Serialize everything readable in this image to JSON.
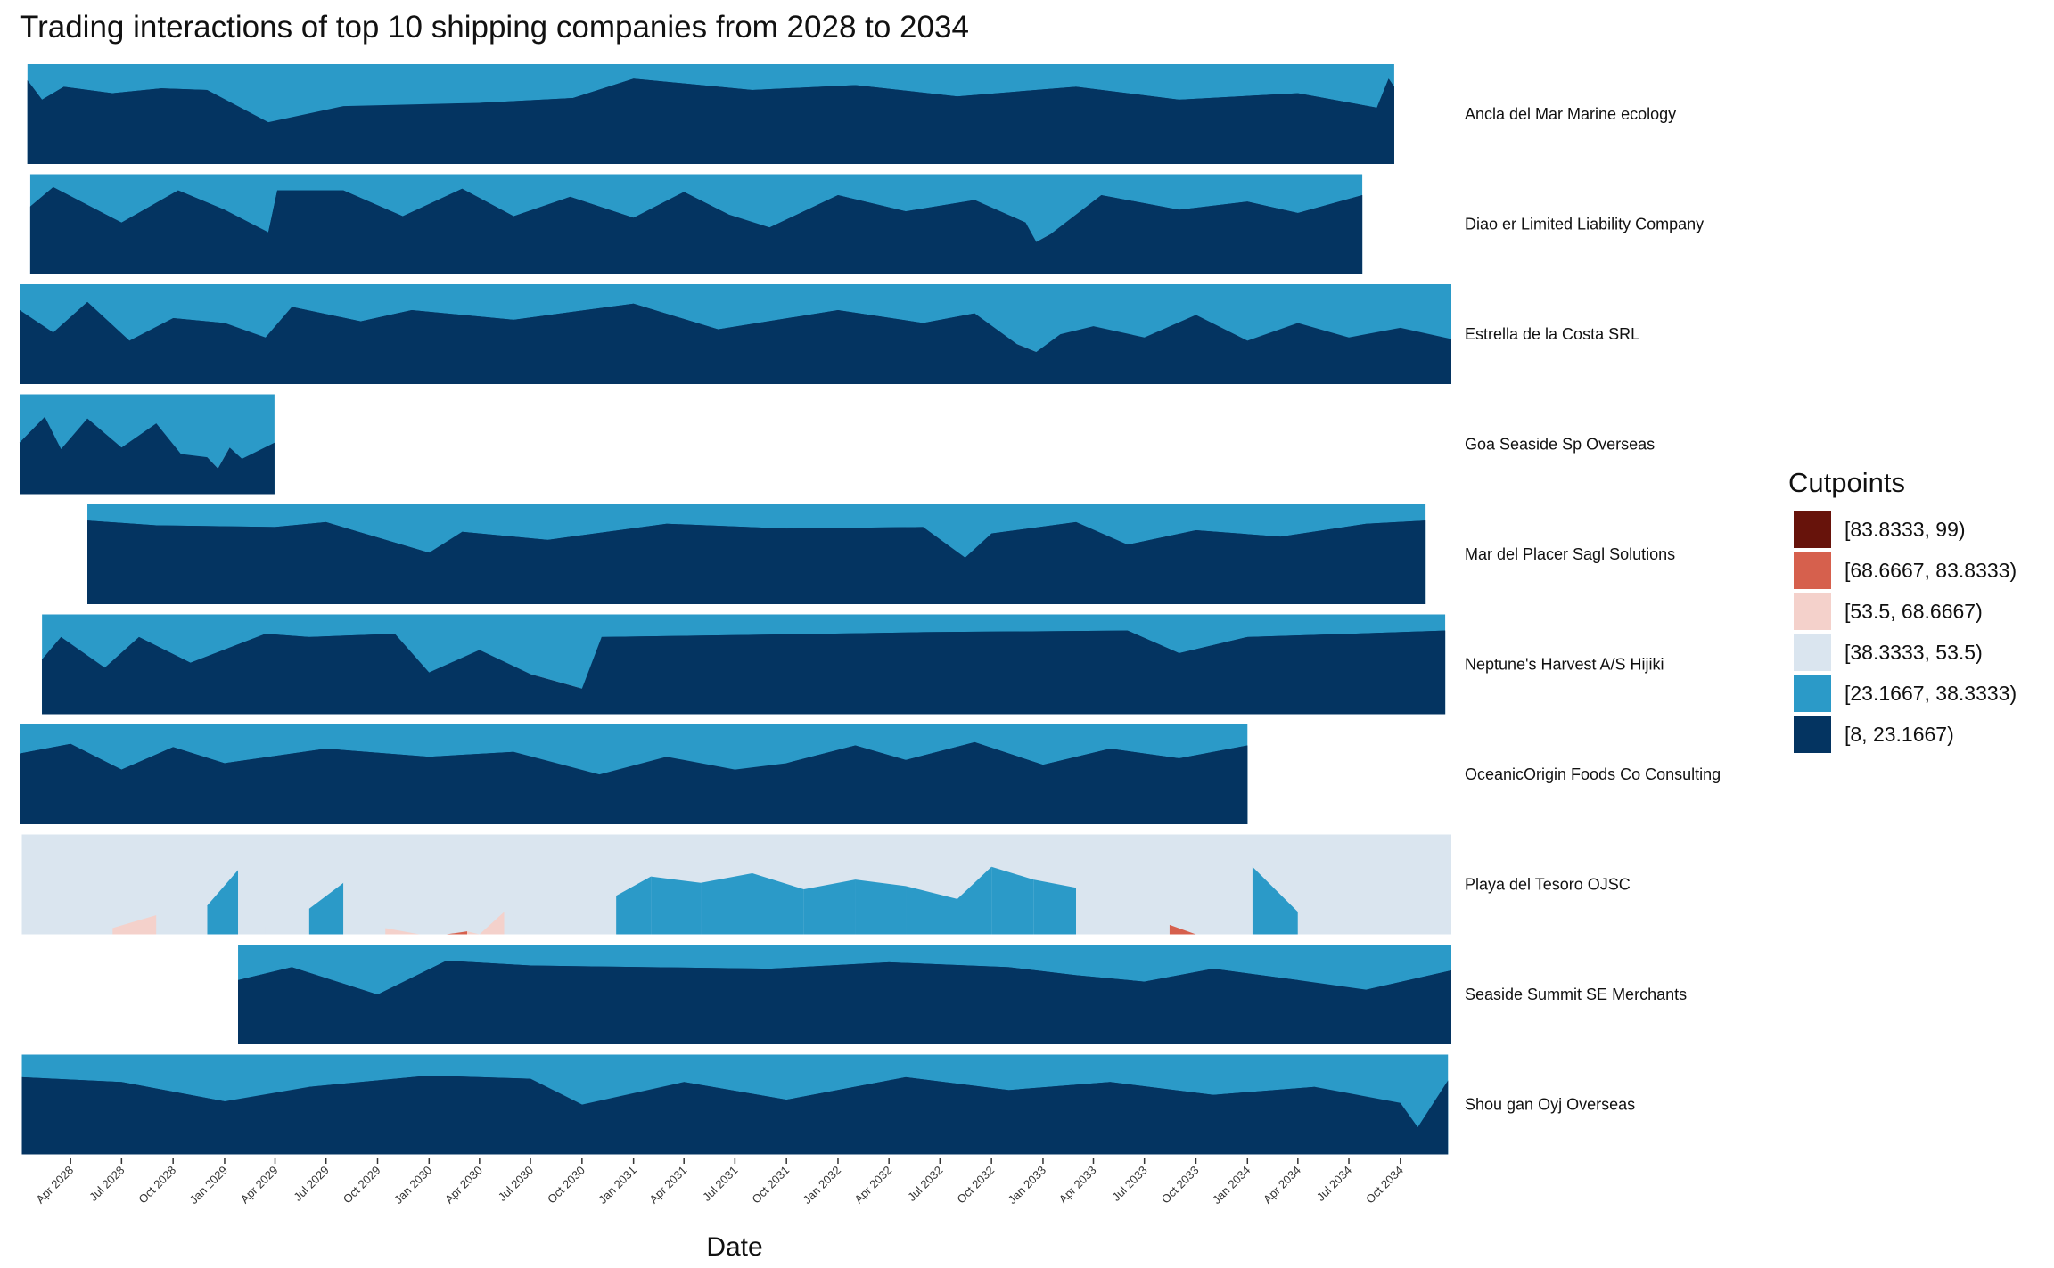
{
  "chart_data": {
    "type": "area",
    "title": "Trading interactions of top 10 shipping companies from 2028 to 2034",
    "xlabel": "Date",
    "ylabel": "",
    "x_range": [
      "2028-01-01",
      "2034-12-31"
    ],
    "x_ticks": [
      "Apr 2028",
      "Jul 2028",
      "Oct 2028",
      "Jan 2029",
      "Apr 2029",
      "Jul 2029",
      "Oct 2029",
      "Jan 2030",
      "Apr 2030",
      "Jul 2030",
      "Oct 2030",
      "Jan 2031",
      "Apr 2031",
      "Jul 2031",
      "Oct 2031",
      "Jan 2032",
      "Apr 2032",
      "Jul 2032",
      "Oct 2032",
      "Jan 2033",
      "Apr 2033",
      "Jul 2033",
      "Oct 2033",
      "Jan 2034",
      "Apr 2034",
      "Jul 2034",
      "Oct 2034"
    ],
    "grid": false,
    "legend": {
      "title": "Cutpoints",
      "position": "right",
      "entries": [
        {
          "label": "[83.8333, 99)",
          "color": "#67130b"
        },
        {
          "label": "[68.6667, 83.8333)",
          "color": "#d6604d"
        },
        {
          "label": "[53.5, 68.6667)",
          "color": "#f4d1cb"
        },
        {
          "label": "[38.3333, 53.5)",
          "color": "#dae5ef"
        },
        {
          "label": "[23.1667, 38.3333)",
          "color": "#2b9ac8"
        },
        {
          "label": "[8, 23.1667)",
          "color": "#043461"
        }
      ]
    },
    "series": [
      {
        "name": "Ancla del Mar Marine ecology",
        "start": "2028-01-15",
        "end": "2034-09-20",
        "points": [
          [
            "2028-01-15",
            10
          ],
          [
            "2028-02-10",
            22
          ],
          [
            "2028-03-20",
            14
          ],
          [
            "2028-06-15",
            18
          ],
          [
            "2028-09-10",
            15
          ],
          [
            "2028-12-01",
            16
          ],
          [
            "2029-03-20",
            36
          ],
          [
            "2029-08-01",
            26
          ],
          [
            "2030-04-01",
            24
          ],
          [
            "2030-09-15",
            21
          ],
          [
            "2031-01-01",
            9
          ],
          [
            "2031-08-01",
            16
          ],
          [
            "2032-02-01",
            13
          ],
          [
            "2032-08-01",
            20
          ],
          [
            "2033-03-01",
            14
          ],
          [
            "2033-09-01",
            22
          ],
          [
            "2034-04-01",
            18
          ],
          [
            "2034-08-20",
            27
          ],
          [
            "2034-09-10",
            9
          ],
          [
            "2034-09-20",
            14
          ]
        ]
      },
      {
        "name": "Diao er  Limited Liability Company",
        "start": "2028-01-20",
        "end": "2034-07-25",
        "points": [
          [
            "2028-01-20",
            20
          ],
          [
            "2028-03-01",
            8
          ],
          [
            "2028-07-01",
            30
          ],
          [
            "2028-10-10",
            10
          ],
          [
            "2029-01-01",
            22
          ],
          [
            "2029-03-20",
            36
          ],
          [
            "2029-04-05",
            10
          ],
          [
            "2029-08-01",
            10
          ],
          [
            "2029-11-15",
            26
          ],
          [
            "2030-03-01",
            9
          ],
          [
            "2030-06-01",
            26
          ],
          [
            "2030-09-10",
            14
          ],
          [
            "2031-01-01",
            27
          ],
          [
            "2031-04-01",
            11
          ],
          [
            "2031-06-20",
            25
          ],
          [
            "2031-09-01",
            33
          ],
          [
            "2032-01-01",
            13
          ],
          [
            "2032-05-01",
            23
          ],
          [
            "2032-09-01",
            16
          ],
          [
            "2032-12-01",
            30
          ],
          [
            "2032-12-20",
            42
          ],
          [
            "2033-01-15",
            37
          ],
          [
            "2033-04-15",
            13
          ],
          [
            "2033-09-01",
            22
          ],
          [
            "2034-01-01",
            17
          ],
          [
            "2034-04-01",
            24
          ],
          [
            "2034-07-25",
            13
          ]
        ]
      },
      {
        "name": "Estrella de la Costa SRL",
        "start": "2028-01-01",
        "end": "2034-12-31",
        "points": [
          [
            "2028-01-01",
            16
          ],
          [
            "2028-03-01",
            30
          ],
          [
            "2028-05-01",
            11
          ],
          [
            "2028-07-15",
            35
          ],
          [
            "2028-10-01",
            21
          ],
          [
            "2029-01-01",
            24
          ],
          [
            "2029-03-15",
            33
          ],
          [
            "2029-05-01",
            14
          ],
          [
            "2029-09-01",
            23
          ],
          [
            "2029-12-01",
            16
          ],
          [
            "2030-06-01",
            22
          ],
          [
            "2031-01-01",
            12
          ],
          [
            "2031-06-01",
            28
          ],
          [
            "2032-01-01",
            16
          ],
          [
            "2032-06-01",
            24
          ],
          [
            "2032-09-01",
            18
          ],
          [
            "2032-11-15",
            37
          ],
          [
            "2032-12-20",
            42
          ],
          [
            "2033-02-01",
            31
          ],
          [
            "2033-04-01",
            26
          ],
          [
            "2033-07-01",
            33
          ],
          [
            "2033-10-01",
            19
          ],
          [
            "2034-01-01",
            35
          ],
          [
            "2034-04-01",
            24
          ],
          [
            "2034-07-01",
            33
          ],
          [
            "2034-10-01",
            27
          ],
          [
            "2034-12-31",
            34
          ]
        ]
      },
      {
        "name": "Goa   Seaside Sp Overseas",
        "start": "2028-01-01",
        "end": "2029-03-31",
        "points": [
          [
            "2028-01-01",
            30
          ],
          [
            "2028-02-15",
            14
          ],
          [
            "2028-03-15",
            34
          ],
          [
            "2028-05-01",
            15
          ],
          [
            "2028-07-01",
            33
          ],
          [
            "2028-09-01",
            18
          ],
          [
            "2028-10-15",
            37
          ],
          [
            "2028-12-01",
            39
          ],
          [
            "2028-12-20",
            46
          ],
          [
            "2029-01-10",
            33
          ],
          [
            "2029-02-01",
            40
          ],
          [
            "2029-03-31",
            30
          ]
        ]
      },
      {
        "name": "Mar del Placer Sagl Solutions",
        "start": "2028-05-01",
        "end": "2034-11-15",
        "points": [
          [
            "2028-05-01",
            10
          ],
          [
            "2028-09-01",
            13
          ],
          [
            "2029-04-01",
            14
          ],
          [
            "2029-07-01",
            11
          ],
          [
            "2030-01-01",
            30
          ],
          [
            "2030-03-01",
            17
          ],
          [
            "2030-08-01",
            22
          ],
          [
            "2031-03-01",
            12
          ],
          [
            "2031-10-01",
            15
          ],
          [
            "2032-06-01",
            14
          ],
          [
            "2032-08-15",
            33
          ],
          [
            "2032-10-01",
            18
          ],
          [
            "2033-03-01",
            11
          ],
          [
            "2033-06-01",
            25
          ],
          [
            "2033-10-01",
            16
          ],
          [
            "2034-03-01",
            20
          ],
          [
            "2034-08-01",
            12
          ],
          [
            "2034-11-15",
            10
          ]
        ]
      },
      {
        "name": "Neptune's Harvest A/S Hijiki",
        "start": "2028-02-10",
        "end": "2034-12-20",
        "points": [
          [
            "2028-02-10",
            28
          ],
          [
            "2028-03-15",
            14
          ],
          [
            "2028-06-01",
            33
          ],
          [
            "2028-08-01",
            14
          ],
          [
            "2028-11-01",
            30
          ],
          [
            "2029-03-15",
            12
          ],
          [
            "2029-06-01",
            14
          ],
          [
            "2029-11-01",
            12
          ],
          [
            "2030-01-01",
            36
          ],
          [
            "2030-04-01",
            22
          ],
          [
            "2030-07-01",
            37
          ],
          [
            "2030-10-01",
            46
          ],
          [
            "2030-11-05",
            14
          ],
          [
            "2031-06-01",
            13
          ],
          [
            "2032-06-01",
            11
          ],
          [
            "2033-06-01",
            10
          ],
          [
            "2033-09-01",
            24
          ],
          [
            "2034-01-01",
            14
          ],
          [
            "2034-07-01",
            12
          ],
          [
            "2034-12-20",
            10
          ]
        ]
      },
      {
        "name": "OceanicOrigin Foods Co Consulting",
        "start": "2028-01-01",
        "end": "2034-01-01",
        "points": [
          [
            "2028-01-01",
            18
          ],
          [
            "2028-04-01",
            12
          ],
          [
            "2028-07-01",
            28
          ],
          [
            "2028-10-01",
            14
          ],
          [
            "2029-01-01",
            24
          ],
          [
            "2029-07-01",
            15
          ],
          [
            "2030-01-01",
            20
          ],
          [
            "2030-06-01",
            17
          ],
          [
            "2030-11-01",
            31
          ],
          [
            "2031-03-01",
            20
          ],
          [
            "2031-07-01",
            28
          ],
          [
            "2031-10-01",
            24
          ],
          [
            "2032-02-01",
            13
          ],
          [
            "2032-05-01",
            22
          ],
          [
            "2032-09-01",
            11
          ],
          [
            "2033-01-01",
            25
          ],
          [
            "2033-05-01",
            15
          ],
          [
            "2033-09-01",
            21
          ],
          [
            "2034-01-01",
            13
          ]
        ]
      },
      {
        "name": "Playa del Tesoro OJSC",
        "start": "2028-01-05",
        "end": "2034-12-31",
        "points": [
          [
            "2028-01-05",
            44
          ],
          [
            "2028-02-20",
            60
          ],
          [
            "2028-04-01",
            46
          ],
          [
            "2028-06-15",
            58
          ],
          [
            "2028-09-01",
            50
          ],
          [
            "2028-12-01",
            44
          ],
          [
            "2029-01-25",
            22
          ],
          [
            "2029-03-15",
            57
          ],
          [
            "2029-06-01",
            46
          ],
          [
            "2029-08-01",
            30
          ],
          [
            "2029-10-15",
            58
          ],
          [
            "2029-12-15",
            62
          ],
          [
            "2030-02-01",
            95
          ],
          [
            "2030-03-10",
            60
          ],
          [
            "2030-04-01",
            73
          ],
          [
            "2030-05-15",
            48
          ],
          [
            "2030-08-01",
            56
          ],
          [
            "2030-10-01",
            44
          ],
          [
            "2030-12-01",
            38
          ],
          [
            "2031-02-01",
            26
          ],
          [
            "2031-05-01",
            30
          ],
          [
            "2031-08-01",
            24
          ],
          [
            "2031-11-01",
            34
          ],
          [
            "2032-02-01",
            28
          ],
          [
            "2032-05-01",
            32
          ],
          [
            "2032-08-01",
            40
          ],
          [
            "2032-10-01",
            20
          ],
          [
            "2032-12-15",
            28
          ],
          [
            "2033-03-01",
            33
          ],
          [
            "2033-06-01",
            44
          ],
          [
            "2033-08-15",
            56
          ],
          [
            "2033-10-01",
            90
          ],
          [
            "2033-11-01",
            78
          ],
          [
            "2033-12-01",
            73
          ],
          [
            "2034-01-10",
            20
          ],
          [
            "2034-04-01",
            48
          ],
          [
            "2034-07-01",
            54
          ],
          [
            "2034-10-01",
            40
          ],
          [
            "2034-12-31",
            58
          ]
        ]
      },
      {
        "name": "Seaside Summit SE Merchants",
        "start": "2029-01-25",
        "end": "2034-12-31",
        "points": [
          [
            "2029-01-25",
            22
          ],
          [
            "2029-05-01",
            14
          ],
          [
            "2029-10-01",
            31
          ],
          [
            "2030-02-01",
            10
          ],
          [
            "2030-07-01",
            13
          ],
          [
            "2031-02-01",
            14
          ],
          [
            "2031-09-01",
            15
          ],
          [
            "2032-04-01",
            11
          ],
          [
            "2032-11-01",
            14
          ],
          [
            "2033-03-01",
            19
          ],
          [
            "2033-07-01",
            23
          ],
          [
            "2033-11-01",
            15
          ],
          [
            "2034-04-01",
            22
          ],
          [
            "2034-08-01",
            28
          ],
          [
            "2034-12-31",
            16
          ]
        ]
      },
      {
        "name": "Shou gan  Oyj Overseas",
        "start": "2028-01-05",
        "end": "2034-12-25",
        "points": [
          [
            "2028-01-05",
            14
          ],
          [
            "2028-07-01",
            17
          ],
          [
            "2029-01-01",
            29
          ],
          [
            "2029-06-01",
            20
          ],
          [
            "2030-01-01",
            13
          ],
          [
            "2030-07-01",
            15
          ],
          [
            "2030-10-01",
            31
          ],
          [
            "2031-04-01",
            17
          ],
          [
            "2031-10-01",
            28
          ],
          [
            "2032-05-01",
            14
          ],
          [
            "2032-11-01",
            22
          ],
          [
            "2033-05-01",
            17
          ],
          [
            "2033-11-01",
            25
          ],
          [
            "2034-05-01",
            20
          ],
          [
            "2034-10-01",
            30
          ],
          [
            "2034-11-01",
            45
          ],
          [
            "2034-12-25",
            16
          ]
        ]
      }
    ]
  }
}
